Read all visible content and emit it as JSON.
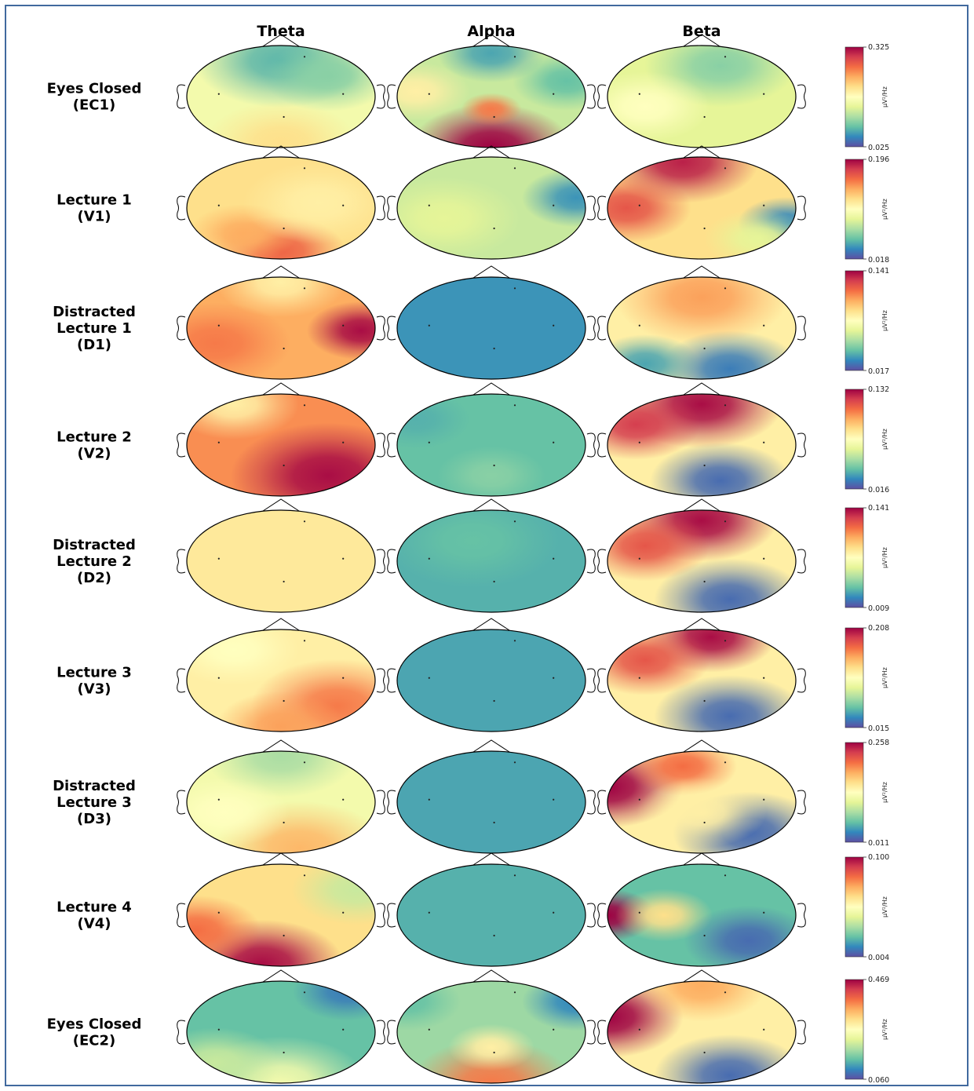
{
  "columns": [
    "Theta",
    "Alpha",
    "Beta"
  ],
  "rows": [
    {
      "label": [
        "Eyes Closed",
        "(EC1)"
      ],
      "colorbar": {
        "max": "0.325",
        "min": "0.025",
        "unit": "μV²/Hz"
      }
    },
    {
      "label": [
        "Lecture 1",
        "(V1)"
      ],
      "colorbar": {
        "max": "0.196",
        "min": "0.018",
        "unit": "μV²/Hz"
      }
    },
    {
      "label": [
        "Distracted",
        "Lecture 1",
        "(D1)"
      ],
      "colorbar": {
        "max": "0.141",
        "min": "0.017",
        "unit": "μV²/Hz"
      }
    },
    {
      "label": [
        "Lecture 2",
        "(V2)"
      ],
      "colorbar": {
        "max": "0.132",
        "min": "0.016",
        "unit": "μV²/Hz"
      }
    },
    {
      "label": [
        "Distracted",
        "Lecture 2",
        "(D2)"
      ],
      "colorbar": {
        "max": "0.141",
        "min": "0.009",
        "unit": "μV²/Hz"
      }
    },
    {
      "label": [
        "Lecture 3",
        "(V3)"
      ],
      "colorbar": {
        "max": "0.208",
        "min": "0.015",
        "unit": "μV²/Hz"
      }
    },
    {
      "label": [
        "Distracted",
        "Lecture 3",
        "(D3)"
      ],
      "colorbar": {
        "max": "0.258",
        "min": "0.011",
        "unit": "μV²/Hz"
      }
    },
    {
      "label": [
        "Lecture 4",
        "(V4)"
      ],
      "colorbar": {
        "max": "0.100",
        "min": "0.004",
        "unit": "μV²/Hz"
      }
    },
    {
      "label": [
        "Eyes Closed",
        "(EC2)"
      ],
      "colorbar": {
        "max": "0.469",
        "min": "0.060",
        "unit": "μV²/Hz"
      }
    }
  ],
  "maps": [
    [
      {
        "base": 0.45,
        "spots": [
          [
            0.0,
            -0.7,
            0.18,
            0.8
          ],
          [
            0.0,
            0.9,
            0.6,
            0.7
          ],
          [
            0.5,
            -0.4,
            0.25,
            0.6
          ]
        ]
      },
      {
        "base": 0.35,
        "spots": [
          [
            0.0,
            1.0,
            1.0,
            0.75
          ],
          [
            0.0,
            0.25,
            0.78,
            0.28
          ],
          [
            0.0,
            -0.85,
            0.15,
            0.5
          ],
          [
            -0.8,
            -0.1,
            0.55,
            0.5
          ],
          [
            0.8,
            -0.3,
            0.2,
            0.5
          ]
        ]
      },
      {
        "base": 0.4,
        "spots": [
          [
            0.2,
            -0.6,
            0.25,
            0.7
          ],
          [
            -0.6,
            0.2,
            0.5,
            0.6
          ]
        ]
      }
    ],
    [
      {
        "base": 0.6,
        "spots": [
          [
            0.0,
            0.85,
            0.82,
            0.6
          ],
          [
            -0.4,
            0.5,
            0.7,
            0.5
          ],
          [
            0.4,
            -0.1,
            0.55,
            0.7
          ]
        ]
      },
      {
        "base": 0.35,
        "spots": [
          [
            0.9,
            -0.2,
            0.12,
            0.5
          ],
          [
            -0.5,
            0.2,
            0.4,
            0.7
          ]
        ]
      },
      {
        "base": 0.6,
        "spots": [
          [
            -0.2,
            -0.9,
            0.95,
            0.7
          ],
          [
            -0.8,
            0.0,
            0.85,
            0.6
          ],
          [
            0.9,
            0.3,
            0.1,
            0.45
          ],
          [
            0.6,
            0.6,
            0.4,
            0.5
          ]
        ]
      }
    ],
    [
      {
        "base": 0.7,
        "spots": [
          [
            0.85,
            0.05,
            0.98,
            0.5
          ],
          [
            0.0,
            -0.9,
            0.55,
            0.6
          ],
          [
            -0.7,
            0.3,
            0.78,
            0.7
          ]
        ]
      },
      {
        "base": 0.12,
        "spots": []
      },
      {
        "base": 0.55,
        "spots": [
          [
            0.0,
            -0.6,
            0.72,
            0.8
          ],
          [
            0.3,
            0.8,
            0.08,
            0.65
          ],
          [
            -0.6,
            0.7,
            0.15,
            0.5
          ]
        ]
      }
    ],
    [
      {
        "base": 0.75,
        "spots": [
          [
            0.5,
            0.6,
            0.98,
            0.9
          ],
          [
            -0.5,
            -0.8,
            0.55,
            0.6
          ]
        ]
      },
      {
        "base": 0.2,
        "spots": [
          [
            0.0,
            0.6,
            0.25,
            0.5
          ],
          [
            -0.8,
            -0.5,
            0.17,
            0.5
          ]
        ]
      },
      {
        "base": 0.55,
        "spots": [
          [
            0.0,
            -0.8,
            0.98,
            0.75
          ],
          [
            -0.7,
            -0.4,
            0.9,
            0.6
          ],
          [
            0.2,
            0.7,
            0.05,
            0.65
          ]
        ]
      }
    ],
    [
      {
        "base": 0.57,
        "spots": []
      },
      {
        "base": 0.17,
        "spots": [
          [
            -0.2,
            -0.4,
            0.2,
            0.8
          ]
        ]
      },
      {
        "base": 0.55,
        "spots": [
          [
            0.0,
            -0.8,
            0.98,
            0.7
          ],
          [
            -0.6,
            -0.3,
            0.85,
            0.6
          ],
          [
            0.3,
            0.75,
            0.05,
            0.7
          ]
        ]
      }
    ],
    [
      {
        "base": 0.55,
        "spots": [
          [
            0.6,
            0.5,
            0.78,
            0.8
          ],
          [
            0.0,
            0.9,
            0.72,
            0.6
          ],
          [
            -0.5,
            -0.6,
            0.5,
            0.6
          ]
        ]
      },
      {
        "base": 0.15,
        "spots": []
      },
      {
        "base": 0.55,
        "spots": [
          [
            0.1,
            -0.85,
            0.98,
            0.6
          ],
          [
            -0.6,
            -0.4,
            0.85,
            0.6
          ],
          [
            0.3,
            0.7,
            0.05,
            0.7
          ]
        ]
      }
    ],
    [
      {
        "base": 0.45,
        "spots": [
          [
            0.0,
            -0.9,
            0.3,
            0.7
          ],
          [
            0.2,
            0.9,
            0.68,
            0.8
          ],
          [
            -0.6,
            0.2,
            0.5,
            0.6
          ]
        ]
      },
      {
        "base": 0.15,
        "spots": []
      },
      {
        "base": 0.55,
        "spots": [
          [
            -1.0,
            -0.3,
            1.0,
            0.7
          ],
          [
            -0.2,
            -0.7,
            0.8,
            0.5
          ],
          [
            0.5,
            0.6,
            0.05,
            0.7
          ],
          [
            0.0,
            0.2,
            0.55,
            0.6
          ]
        ]
      }
    ],
    [
      {
        "base": 0.6,
        "spots": [
          [
            -0.2,
            0.95,
            0.98,
            0.75
          ],
          [
            -0.9,
            0.3,
            0.8,
            0.6
          ],
          [
            0.8,
            -0.5,
            0.35,
            0.6
          ]
        ]
      },
      {
        "base": 0.17,
        "spots": []
      },
      {
        "base": 0.2,
        "spots": [
          [
            -1.0,
            0.0,
            1.0,
            0.45
          ],
          [
            -0.4,
            0.0,
            0.6,
            0.45
          ],
          [
            0.5,
            0.5,
            0.05,
            0.6
          ]
        ]
      }
    ],
    [
      {
        "base": 0.2,
        "spots": [
          [
            0.0,
            1.0,
            0.45,
            0.8
          ],
          [
            -0.7,
            0.6,
            0.35,
            0.6
          ],
          [
            0.7,
            -0.8,
            0.08,
            0.5
          ]
        ]
      },
      {
        "base": 0.28,
        "spots": [
          [
            0.0,
            1.0,
            0.78,
            0.75
          ],
          [
            0.0,
            0.3,
            0.55,
            0.4
          ],
          [
            -0.9,
            -0.6,
            0.2,
            0.5
          ],
          [
            0.9,
            -0.6,
            0.1,
            0.5
          ]
        ]
      },
      {
        "base": 0.55,
        "spots": [
          [
            -1.0,
            -0.3,
            1.0,
            0.7
          ],
          [
            0.3,
            0.85,
            0.05,
            0.7
          ],
          [
            0.0,
            -0.9,
            0.7,
            0.6
          ]
        ]
      }
    ]
  ]
}
